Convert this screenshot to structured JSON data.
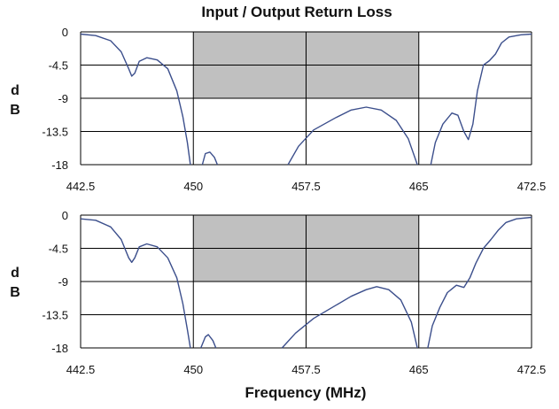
{
  "title": "Input / Output Return Loss",
  "xlabel": "Frequency (MHz)",
  "chart_data": [
    {
      "type": "line",
      "ylabel": [
        "d",
        "B"
      ],
      "xlim": [
        442.5,
        472.5
      ],
      "ylim": [
        -18,
        0
      ],
      "xticks": [
        "442.5",
        "450",
        "457.5",
        "465",
        "472.5"
      ],
      "yticks": [
        "0",
        "-4.5",
        "-9",
        "-13.5",
        "-18"
      ],
      "grid": true,
      "shaded_band": {
        "x": [
          450,
          465
        ],
        "y": [
          -9,
          0
        ]
      },
      "series": [
        {
          "segments": [
            [
              [
                442.5,
                -0.3
              ],
              [
                443.5,
                -0.5
              ],
              [
                444.5,
                -1.2
              ],
              [
                445.2,
                -2.7
              ],
              [
                445.7,
                -5.0
              ],
              [
                445.9,
                -6.0
              ],
              [
                446.1,
                -5.6
              ],
              [
                446.4,
                -4.0
              ],
              [
                446.9,
                -3.5
              ],
              [
                447.6,
                -3.8
              ],
              [
                448.3,
                -5.0
              ],
              [
                448.9,
                -8.0
              ],
              [
                449.3,
                -11.5
              ],
              [
                449.6,
                -15.0
              ],
              [
                449.8,
                -18.0
              ]
            ],
            [
              [
                450.6,
                -18.0
              ],
              [
                450.8,
                -16.5
              ],
              [
                451.1,
                -16.3
              ],
              [
                451.4,
                -17.0
              ],
              [
                451.6,
                -18.0
              ]
            ],
            [
              [
                456.3,
                -18.0
              ],
              [
                457.0,
                -15.5
              ],
              [
                458.0,
                -13.3
              ],
              [
                459.5,
                -11.6
              ],
              [
                460.5,
                -10.6
              ],
              [
                461.5,
                -10.2
              ],
              [
                462.5,
                -10.6
              ],
              [
                463.5,
                -12.0
              ],
              [
                464.3,
                -14.5
              ],
              [
                464.9,
                -18.0
              ]
            ],
            [
              [
                465.8,
                -18.0
              ],
              [
                466.1,
                -15.0
              ],
              [
                466.6,
                -12.5
              ],
              [
                467.2,
                -11.0
              ],
              [
                467.6,
                -11.3
              ],
              [
                468.0,
                -13.5
              ],
              [
                468.3,
                -14.6
              ],
              [
                468.6,
                -12.5
              ],
              [
                468.9,
                -8.0
              ],
              [
                469.3,
                -4.5
              ],
              [
                469.7,
                -3.9
              ],
              [
                470.1,
                -3.0
              ],
              [
                470.5,
                -1.5
              ],
              [
                471.0,
                -0.7
              ],
              [
                471.8,
                -0.4
              ],
              [
                472.5,
                -0.3
              ]
            ]
          ]
        }
      ]
    },
    {
      "type": "line",
      "ylabel": [
        "d",
        "B"
      ],
      "xlim": [
        442.5,
        472.5
      ],
      "ylim": [
        -18,
        0
      ],
      "xticks": [
        "442.5",
        "450",
        "457.5",
        "465",
        "472.5"
      ],
      "yticks": [
        "0",
        "-4.5",
        "-9",
        "-13.5",
        "-18"
      ],
      "grid": true,
      "shaded_band": {
        "x": [
          450,
          465
        ],
        "y": [
          -9,
          0
        ]
      },
      "series": [
        {
          "segments": [
            [
              [
                442.5,
                -0.5
              ],
              [
                443.5,
                -0.7
              ],
              [
                444.5,
                -1.6
              ],
              [
                445.2,
                -3.3
              ],
              [
                445.7,
                -5.8
              ],
              [
                445.9,
                -6.4
              ],
              [
                446.1,
                -5.8
              ],
              [
                446.4,
                -4.3
              ],
              [
                446.9,
                -3.9
              ],
              [
                447.6,
                -4.3
              ],
              [
                448.3,
                -5.8
              ],
              [
                448.9,
                -8.5
              ],
              [
                449.3,
                -12.0
              ],
              [
                449.6,
                -15.5
              ],
              [
                449.8,
                -18.0
              ]
            ],
            [
              [
                450.5,
                -18.0
              ],
              [
                450.8,
                -16.5
              ],
              [
                451.0,
                -16.2
              ],
              [
                451.3,
                -17.0
              ],
              [
                451.5,
                -18.0
              ]
            ],
            [
              [
                455.9,
                -18.0
              ],
              [
                456.8,
                -16.0
              ],
              [
                458.0,
                -14.0
              ],
              [
                459.5,
                -12.2
              ],
              [
                460.5,
                -11.0
              ],
              [
                461.5,
                -10.1
              ],
              [
                462.2,
                -9.7
              ],
              [
                463.0,
                -10.1
              ],
              [
                463.8,
                -11.5
              ],
              [
                464.5,
                -14.5
              ],
              [
                464.9,
                -18.0
              ]
            ],
            [
              [
                465.6,
                -18.0
              ],
              [
                465.9,
                -15.0
              ],
              [
                466.4,
                -12.5
              ],
              [
                466.9,
                -10.5
              ],
              [
                467.5,
                -9.5
              ],
              [
                468.0,
                -9.8
              ],
              [
                468.4,
                -8.5
              ],
              [
                468.8,
                -6.5
              ],
              [
                469.3,
                -4.5
              ],
              [
                469.8,
                -3.3
              ],
              [
                470.3,
                -2.0
              ],
              [
                470.8,
                -1.0
              ],
              [
                471.5,
                -0.5
              ],
              [
                472.5,
                -0.3
              ]
            ]
          ]
        }
      ]
    }
  ]
}
